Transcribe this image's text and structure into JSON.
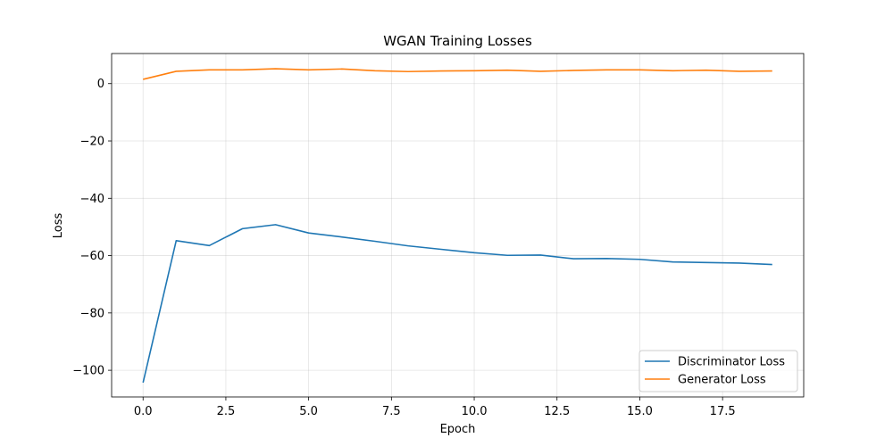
{
  "chart_data": {
    "type": "line",
    "title": "WGAN Training Losses",
    "xlabel": "Epoch",
    "ylabel": "Loss",
    "xlim": [
      -0.95,
      19.95
    ],
    "ylim": [
      -109.3,
      10.5
    ],
    "xticks": [
      0.0,
      2.5,
      5.0,
      7.5,
      10.0,
      12.5,
      15.0,
      17.5
    ],
    "xtick_labels": [
      "0.0",
      "2.5",
      "5.0",
      "7.5",
      "10.0",
      "12.5",
      "15.0",
      "17.5"
    ],
    "yticks": [
      0,
      -20,
      -40,
      -60,
      -80,
      -100
    ],
    "ytick_labels": [
      "0",
      "−20",
      "−40",
      "−60",
      "−80",
      "−100"
    ],
    "grid": true,
    "legend_position": "lower-right",
    "x": [
      0,
      1,
      2,
      3,
      4,
      5,
      6,
      7,
      8,
      9,
      10,
      11,
      12,
      13,
      14,
      15,
      16,
      17,
      18,
      19
    ],
    "series": [
      {
        "name": "Discriminator Loss",
        "color": "#1f77b4",
        "values": [
          -104.3,
          -54.8,
          -56.5,
          -50.6,
          -49.2,
          -52.1,
          -53.5,
          -55.0,
          -56.6,
          -57.8,
          -59.0,
          -59.9,
          -59.8,
          -61.1,
          -61.0,
          -61.3,
          -62.2,
          -62.4,
          -62.6,
          -63.1
        ]
      },
      {
        "name": "Generator Loss",
        "color": "#ff7f0e",
        "values": [
          1.5,
          4.3,
          4.8,
          4.8,
          5.2,
          4.8,
          5.1,
          4.5,
          4.2,
          4.4,
          4.5,
          4.7,
          4.3,
          4.6,
          4.8,
          4.8,
          4.5,
          4.7,
          4.3,
          4.4
        ]
      }
    ]
  }
}
